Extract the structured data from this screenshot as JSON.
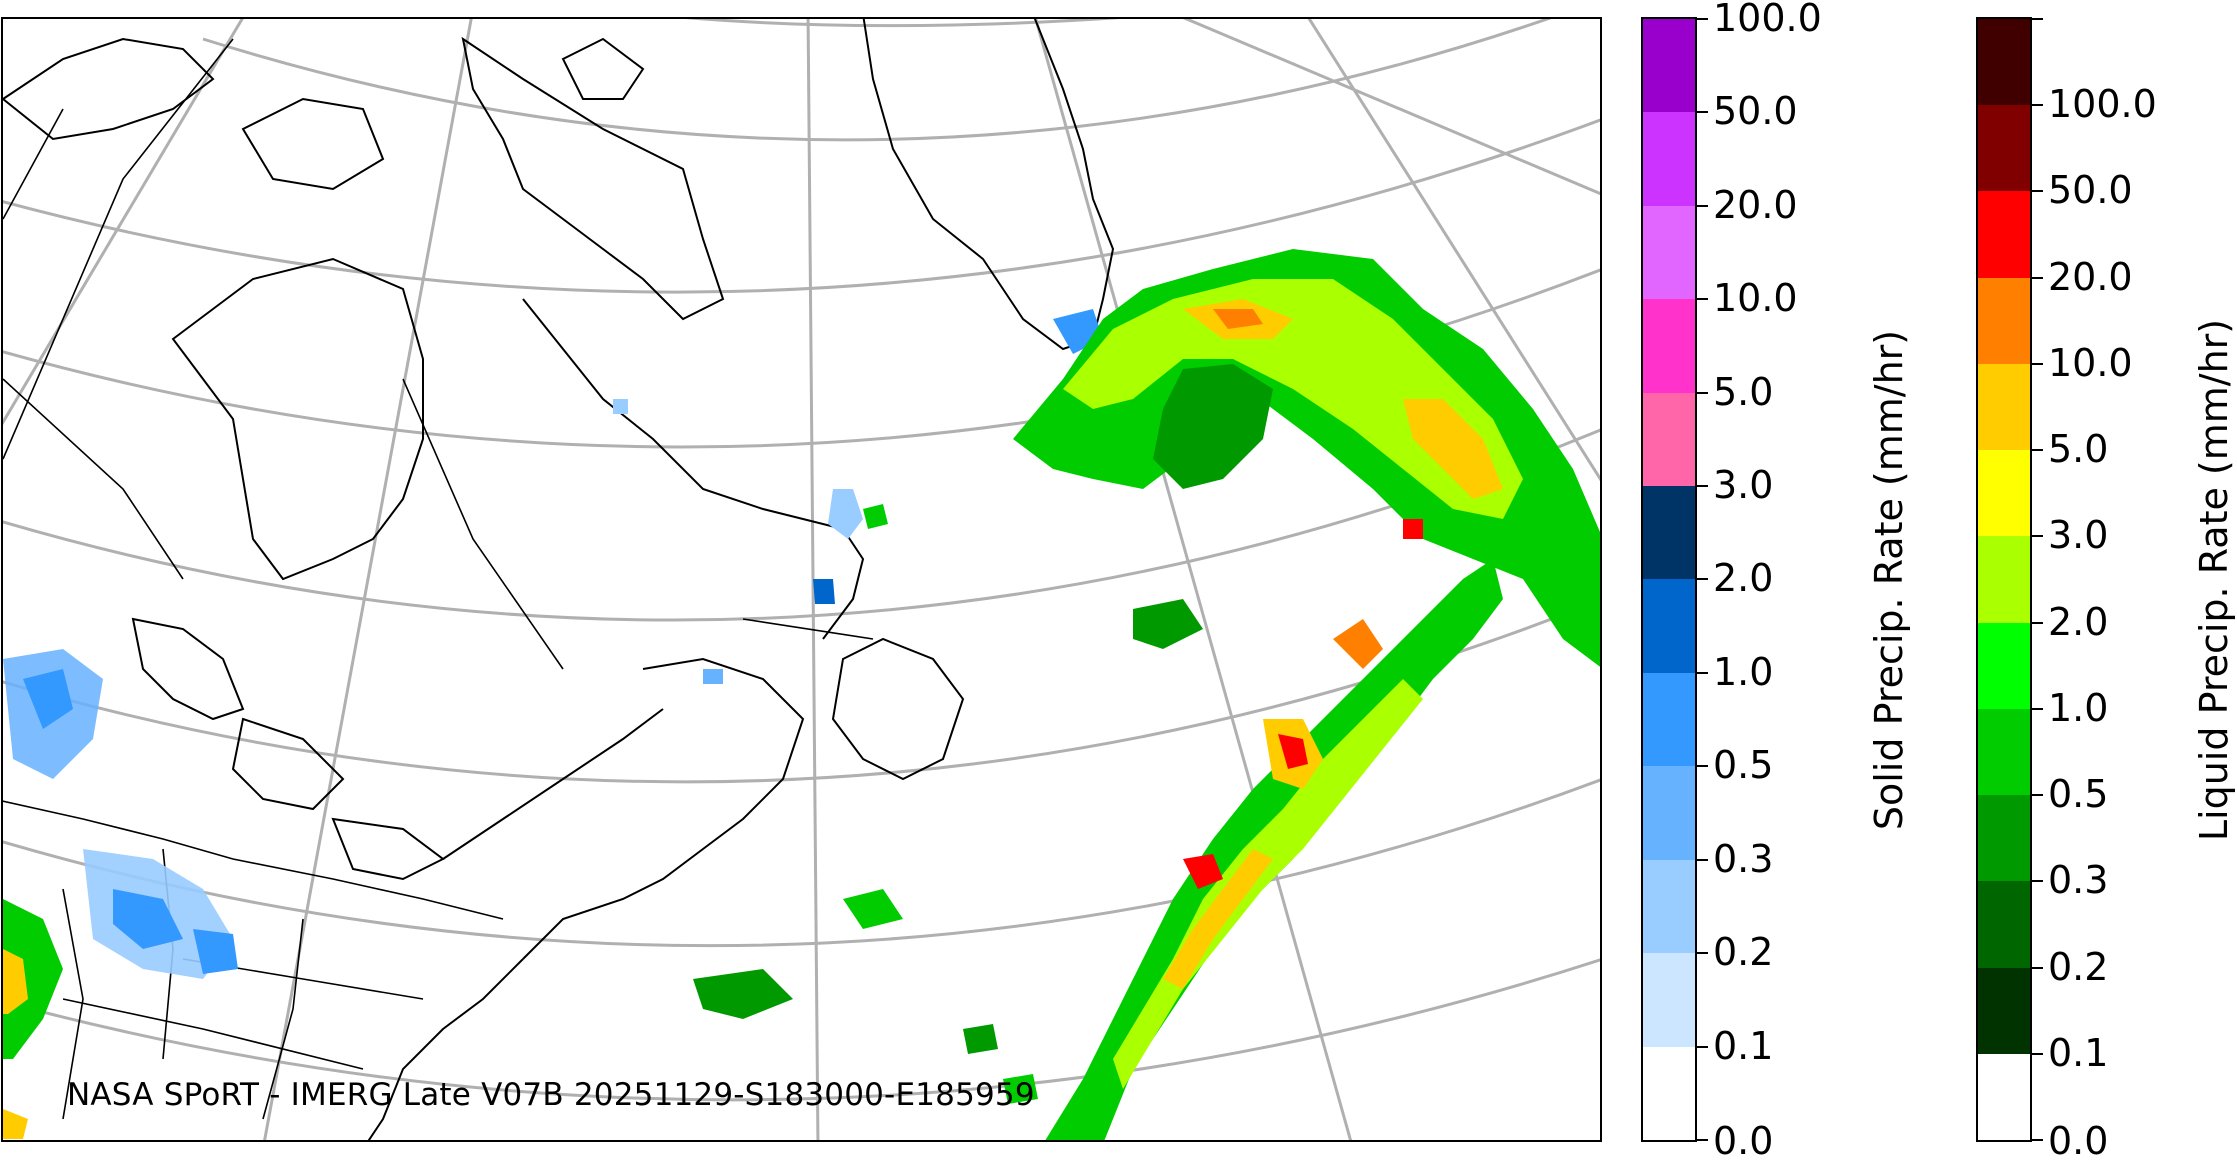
{
  "map": {
    "credit": "NASA SPoRT - IMERG Late V07B 20251129-S183000-E185959"
  },
  "colorbars": {
    "solid": {
      "title": "Solid Precip. Rate (mm/hr)",
      "ticks": [
        "0.0",
        "0.1",
        "0.2",
        "0.3",
        "0.5",
        "1.0",
        "2.0",
        "3.0",
        "5.0",
        "10.0",
        "20.0",
        "50.0",
        "100.0"
      ],
      "colors": [
        "#ffffff",
        "#cce6ff",
        "#99ccff",
        "#66b2ff",
        "#3399ff",
        "#0066cc",
        "#003366",
        "#ff66aa",
        "#ff33cc",
        "#e066ff",
        "#cc33ff",
        "#9900cc"
      ]
    },
    "liquid": {
      "title": "Liquid Precip. Rate (mm/hr)",
      "ticks": [
        "0.0",
        "0.1",
        "0.2",
        "0.3",
        "0.5",
        "1.0",
        "2.0",
        "3.0",
        "5.0",
        "10.0",
        "20.0",
        "50.0",
        "100.0"
      ],
      "colors": [
        "#ffffff",
        "#003300",
        "#006600",
        "#009900",
        "#00cc00",
        "#00ff00",
        "#aaff00",
        "#ffff00",
        "#ffcc00",
        "#ff8000",
        "#ff0000",
        "#800000",
        "#400000"
      ]
    }
  }
}
